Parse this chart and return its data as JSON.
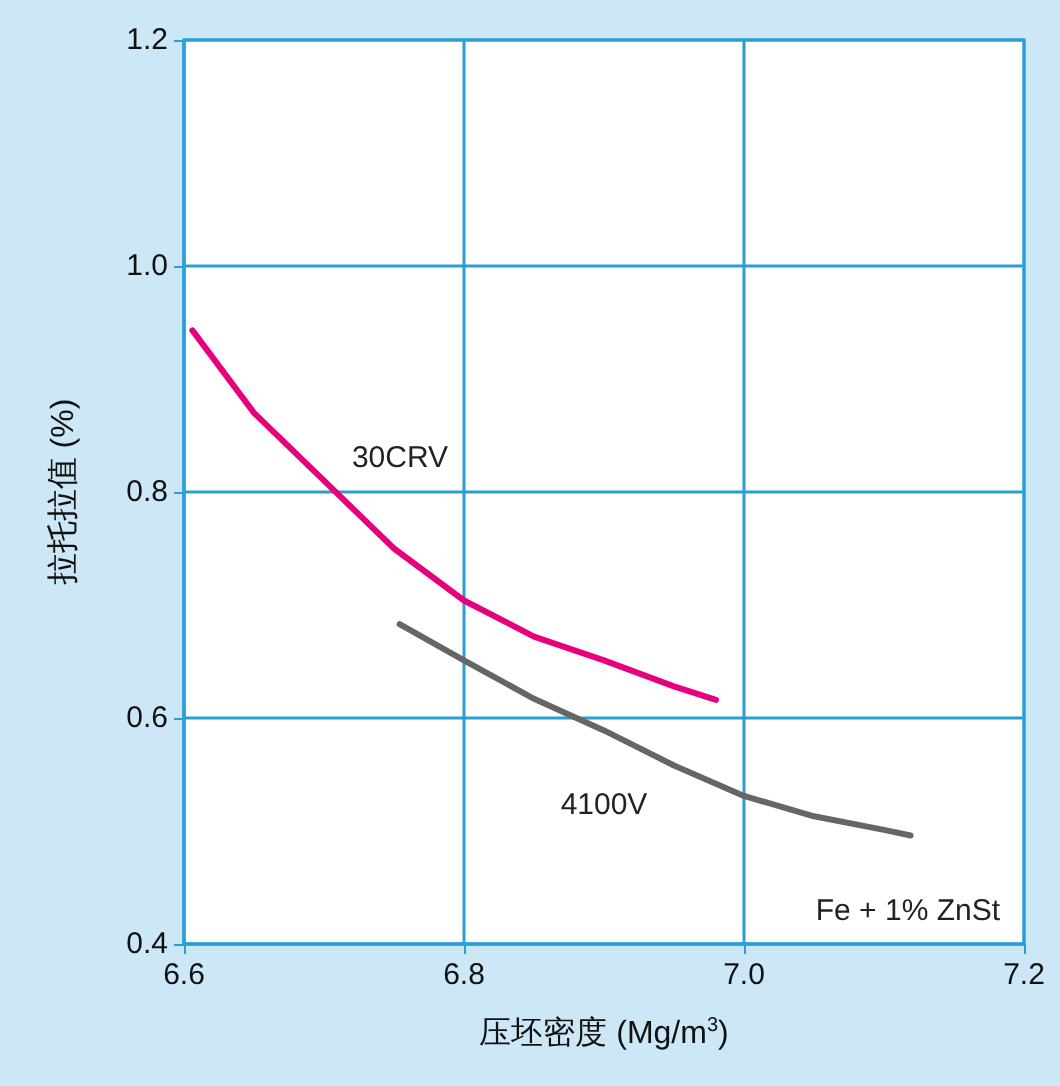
{
  "chart_data": {
    "type": "line",
    "xlabel": "压坯密度 (Mg/m$^{3}$)",
    "ylabel": "拉托拉值 (%)",
    "xlim": [
      6.6,
      7.2
    ],
    "ylim": [
      0.4,
      1.2
    ],
    "xticks": [
      {
        "value": 6.6,
        "label": "6.6"
      },
      {
        "value": 6.8,
        "label": "6.8"
      },
      {
        "value": 7.0,
        "label": "7.0"
      },
      {
        "value": 7.2,
        "label": "7.2"
      }
    ],
    "yticks": [
      {
        "value": 0.4,
        "label": "0.4"
      },
      {
        "value": 0.6,
        "label": "0.6"
      },
      {
        "value": 0.8,
        "label": "0.8"
      },
      {
        "value": 1.0,
        "label": "1.0"
      },
      {
        "value": 1.2,
        "label": "1.2"
      }
    ],
    "grid": true,
    "legend": false,
    "marker": "none",
    "line_style": "solid",
    "series": [
      {
        "name": "30CRV",
        "color": "#e6007e",
        "x": [
          6.606,
          6.65,
          6.7,
          6.75,
          6.8,
          6.85,
          6.9,
          6.95,
          6.98
        ],
        "values": [
          0.943,
          0.87,
          0.81,
          0.75,
          0.704,
          0.672,
          0.651,
          0.628,
          0.616
        ]
      },
      {
        "name": "4100V",
        "color": "#666666",
        "x": [
          6.754,
          6.8,
          6.85,
          6.9,
          6.95,
          7.0,
          7.05,
          7.1,
          7.119
        ],
        "values": [
          0.683,
          0.651,
          0.617,
          0.589,
          0.558,
          0.531,
          0.513,
          0.501,
          0.496
        ]
      }
    ],
    "annotations": [
      "Fe + 1% ZnSt"
    ]
  }
}
